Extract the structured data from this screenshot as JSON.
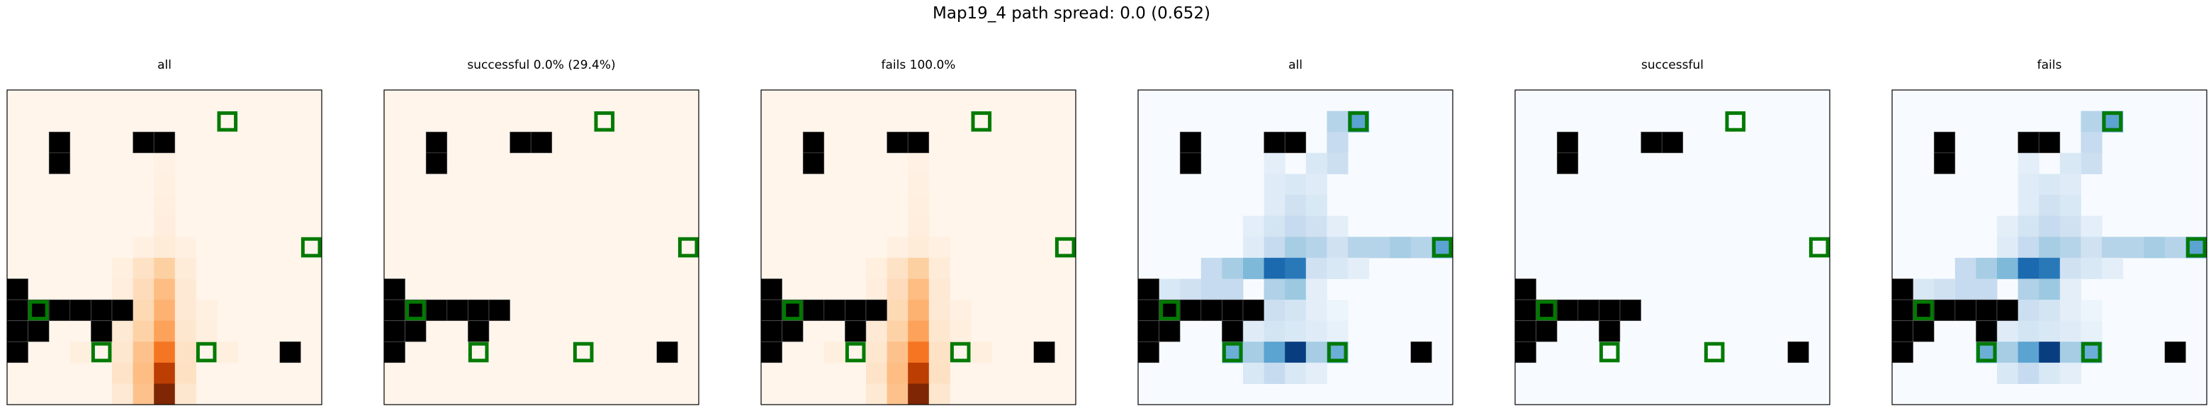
{
  "figure": {
    "title": "Map19_4 path spread: 0.0 (0.652)"
  },
  "chart_data": {
    "type": "heatmap",
    "grid_size": 15,
    "obstacle_color": "#000000",
    "marker_color": "#007a00",
    "obstacles": [
      [
        2,
        2
      ],
      [
        6,
        2
      ],
      [
        7,
        2
      ],
      [
        2,
        3
      ],
      [
        0,
        9
      ],
      [
        0,
        10
      ],
      [
        1,
        10
      ],
      [
        2,
        10
      ],
      [
        3,
        10
      ],
      [
        4,
        10
      ],
      [
        5,
        10
      ],
      [
        0,
        11
      ],
      [
        1,
        11
      ],
      [
        4,
        11
      ],
      [
        0,
        12
      ],
      [
        13,
        12
      ]
    ],
    "markers": [
      [
        10,
        1
      ],
      [
        14,
        7
      ],
      [
        1,
        10
      ],
      [
        4,
        12
      ],
      [
        9,
        12
      ]
    ],
    "panels": [
      {
        "title": "all",
        "colormap": "Oranges",
        "cells": [
          [
            7,
            3,
            0.03
          ],
          [
            7,
            4,
            0.04
          ],
          [
            7,
            5,
            0.05
          ],
          [
            7,
            6,
            0.06
          ],
          [
            7,
            7,
            0.08
          ],
          [
            6,
            7,
            0.04
          ],
          [
            8,
            7,
            0.04
          ],
          [
            5,
            8,
            0.05
          ],
          [
            6,
            8,
            0.15
          ],
          [
            7,
            8,
            0.25
          ],
          [
            8,
            8,
            0.08
          ],
          [
            5,
            9,
            0.06
          ],
          [
            6,
            9,
            0.18
          ],
          [
            7,
            9,
            0.32
          ],
          [
            8,
            9,
            0.1
          ],
          [
            5,
            10,
            0.08
          ],
          [
            6,
            10,
            0.2
          ],
          [
            7,
            10,
            0.36
          ],
          [
            8,
            10,
            0.1
          ],
          [
            9,
            10,
            0.04
          ],
          [
            4,
            11,
            0.05
          ],
          [
            5,
            11,
            0.1
          ],
          [
            6,
            11,
            0.24
          ],
          [
            7,
            11,
            0.42
          ],
          [
            8,
            11,
            0.12
          ],
          [
            9,
            11,
            0.05
          ],
          [
            3,
            12,
            0.05
          ],
          [
            5,
            12,
            0.12
          ],
          [
            6,
            12,
            0.3
          ],
          [
            7,
            12,
            0.58
          ],
          [
            8,
            12,
            0.15
          ],
          [
            10,
            12,
            0.05
          ],
          [
            5,
            13,
            0.14
          ],
          [
            6,
            13,
            0.32
          ],
          [
            7,
            13,
            0.82
          ],
          [
            8,
            13,
            0.16
          ],
          [
            5,
            14,
            0.1
          ],
          [
            6,
            14,
            0.3
          ],
          [
            7,
            14,
            1.0
          ],
          [
            8,
            14,
            0.12
          ]
        ]
      },
      {
        "title": "successful 0.0% (29.4%)",
        "colormap": "Oranges",
        "cells": []
      },
      {
        "title": "fails 100.0%",
        "colormap": "Oranges",
        "cells": [
          [
            7,
            3,
            0.03
          ],
          [
            7,
            4,
            0.04
          ],
          [
            7,
            5,
            0.05
          ],
          [
            7,
            6,
            0.06
          ],
          [
            7,
            7,
            0.08
          ],
          [
            6,
            7,
            0.04
          ],
          [
            8,
            7,
            0.04
          ],
          [
            5,
            8,
            0.05
          ],
          [
            6,
            8,
            0.15
          ],
          [
            7,
            8,
            0.25
          ],
          [
            8,
            8,
            0.08
          ],
          [
            5,
            9,
            0.06
          ],
          [
            6,
            9,
            0.18
          ],
          [
            7,
            9,
            0.32
          ],
          [
            8,
            9,
            0.1
          ],
          [
            5,
            10,
            0.08
          ],
          [
            6,
            10,
            0.2
          ],
          [
            7,
            10,
            0.36
          ],
          [
            8,
            10,
            0.1
          ],
          [
            9,
            10,
            0.04
          ],
          [
            4,
            11,
            0.05
          ],
          [
            5,
            11,
            0.1
          ],
          [
            6,
            11,
            0.24
          ],
          [
            7,
            11,
            0.42
          ],
          [
            8,
            11,
            0.12
          ],
          [
            9,
            11,
            0.05
          ],
          [
            3,
            12,
            0.05
          ],
          [
            5,
            12,
            0.12
          ],
          [
            6,
            12,
            0.3
          ],
          [
            7,
            12,
            0.58
          ],
          [
            8,
            12,
            0.15
          ],
          [
            10,
            12,
            0.05
          ],
          [
            5,
            13,
            0.14
          ],
          [
            6,
            13,
            0.32
          ],
          [
            7,
            13,
            0.82
          ],
          [
            8,
            13,
            0.16
          ],
          [
            5,
            14,
            0.1
          ],
          [
            6,
            14,
            0.3
          ],
          [
            7,
            14,
            1.0
          ],
          [
            8,
            14,
            0.12
          ]
        ]
      },
      {
        "title": "all",
        "colormap": "Blues",
        "cells": [
          [
            9,
            1,
            0.3
          ],
          [
            10,
            1,
            0.55
          ],
          [
            9,
            2,
            0.25
          ],
          [
            9,
            3,
            0.22
          ],
          [
            6,
            3,
            0.1
          ],
          [
            8,
            3,
            0.15
          ],
          [
            6,
            4,
            0.12
          ],
          [
            7,
            4,
            0.15
          ],
          [
            8,
            4,
            0.12
          ],
          [
            6,
            5,
            0.12
          ],
          [
            7,
            5,
            0.2
          ],
          [
            8,
            5,
            0.15
          ],
          [
            5,
            6,
            0.1
          ],
          [
            6,
            6,
            0.18
          ],
          [
            7,
            6,
            0.25
          ],
          [
            8,
            6,
            0.2
          ],
          [
            9,
            6,
            0.1
          ],
          [
            5,
            7,
            0.12
          ],
          [
            6,
            7,
            0.25
          ],
          [
            7,
            7,
            0.35
          ],
          [
            8,
            7,
            0.3
          ],
          [
            9,
            7,
            0.2
          ],
          [
            10,
            7,
            0.3
          ],
          [
            11,
            7,
            0.3
          ],
          [
            12,
            7,
            0.35
          ],
          [
            13,
            7,
            0.3
          ],
          [
            14,
            7,
            0.55
          ],
          [
            3,
            8,
            0.25
          ],
          [
            4,
            8,
            0.35
          ],
          [
            5,
            8,
            0.45
          ],
          [
            6,
            8,
            0.78
          ],
          [
            7,
            8,
            0.72
          ],
          [
            8,
            8,
            0.2
          ],
          [
            9,
            8,
            0.15
          ],
          [
            10,
            8,
            0.1
          ],
          [
            1,
            9,
            0.15
          ],
          [
            2,
            9,
            0.2
          ],
          [
            3,
            9,
            0.25
          ],
          [
            4,
            9,
            0.25
          ],
          [
            6,
            9,
            0.32
          ],
          [
            7,
            9,
            0.38
          ],
          [
            8,
            9,
            0.1
          ],
          [
            1,
            10,
            0.5
          ],
          [
            6,
            10,
            0.22
          ],
          [
            7,
            10,
            0.18
          ],
          [
            8,
            10,
            0.1
          ],
          [
            9,
            10,
            0.05
          ],
          [
            4,
            11,
            0.15
          ],
          [
            5,
            11,
            0.12
          ],
          [
            6,
            11,
            0.18
          ],
          [
            7,
            11,
            0.15
          ],
          [
            8,
            11,
            0.12
          ],
          [
            9,
            11,
            0.08
          ],
          [
            4,
            12,
            0.5
          ],
          [
            5,
            12,
            0.35
          ],
          [
            6,
            12,
            0.55
          ],
          [
            7,
            12,
            0.95
          ],
          [
            8,
            12,
            0.35
          ],
          [
            9,
            12,
            0.5
          ],
          [
            5,
            13,
            0.15
          ],
          [
            6,
            13,
            0.25
          ],
          [
            7,
            13,
            0.15
          ],
          [
            8,
            13,
            0.1
          ]
        ]
      },
      {
        "title": "successful",
        "colormap": "Blues",
        "cells": []
      },
      {
        "title": "fails",
        "colormap": "Blues",
        "cells": [
          [
            9,
            1,
            0.3
          ],
          [
            10,
            1,
            0.55
          ],
          [
            9,
            2,
            0.25
          ],
          [
            9,
            3,
            0.22
          ],
          [
            6,
            3,
            0.1
          ],
          [
            8,
            3,
            0.15
          ],
          [
            6,
            4,
            0.12
          ],
          [
            7,
            4,
            0.15
          ],
          [
            8,
            4,
            0.12
          ],
          [
            6,
            5,
            0.12
          ],
          [
            7,
            5,
            0.2
          ],
          [
            8,
            5,
            0.15
          ],
          [
            5,
            6,
            0.1
          ],
          [
            6,
            6,
            0.18
          ],
          [
            7,
            6,
            0.25
          ],
          [
            8,
            6,
            0.2
          ],
          [
            9,
            6,
            0.1
          ],
          [
            5,
            7,
            0.12
          ],
          [
            6,
            7,
            0.25
          ],
          [
            7,
            7,
            0.35
          ],
          [
            8,
            7,
            0.3
          ],
          [
            9,
            7,
            0.2
          ],
          [
            10,
            7,
            0.3
          ],
          [
            11,
            7,
            0.3
          ],
          [
            12,
            7,
            0.35
          ],
          [
            13,
            7,
            0.3
          ],
          [
            14,
            7,
            0.55
          ],
          [
            3,
            8,
            0.25
          ],
          [
            4,
            8,
            0.35
          ],
          [
            5,
            8,
            0.45
          ],
          [
            6,
            8,
            0.78
          ],
          [
            7,
            8,
            0.72
          ],
          [
            8,
            8,
            0.2
          ],
          [
            9,
            8,
            0.15
          ],
          [
            10,
            8,
            0.1
          ],
          [
            1,
            9,
            0.15
          ],
          [
            2,
            9,
            0.2
          ],
          [
            3,
            9,
            0.25
          ],
          [
            4,
            9,
            0.25
          ],
          [
            6,
            9,
            0.32
          ],
          [
            7,
            9,
            0.38
          ],
          [
            8,
            9,
            0.1
          ],
          [
            1,
            10,
            0.5
          ],
          [
            6,
            10,
            0.22
          ],
          [
            7,
            10,
            0.18
          ],
          [
            8,
            10,
            0.1
          ],
          [
            9,
            10,
            0.05
          ],
          [
            4,
            11,
            0.15
          ],
          [
            5,
            11,
            0.12
          ],
          [
            6,
            11,
            0.18
          ],
          [
            7,
            11,
            0.15
          ],
          [
            8,
            11,
            0.12
          ],
          [
            9,
            11,
            0.08
          ],
          [
            4,
            12,
            0.5
          ],
          [
            5,
            12,
            0.35
          ],
          [
            6,
            12,
            0.55
          ],
          [
            7,
            12,
            0.95
          ],
          [
            8,
            12,
            0.35
          ],
          [
            9,
            12,
            0.5
          ],
          [
            5,
            13,
            0.15
          ],
          [
            6,
            13,
            0.25
          ],
          [
            7,
            13,
            0.15
          ],
          [
            8,
            13,
            0.1
          ]
        ]
      }
    ]
  }
}
